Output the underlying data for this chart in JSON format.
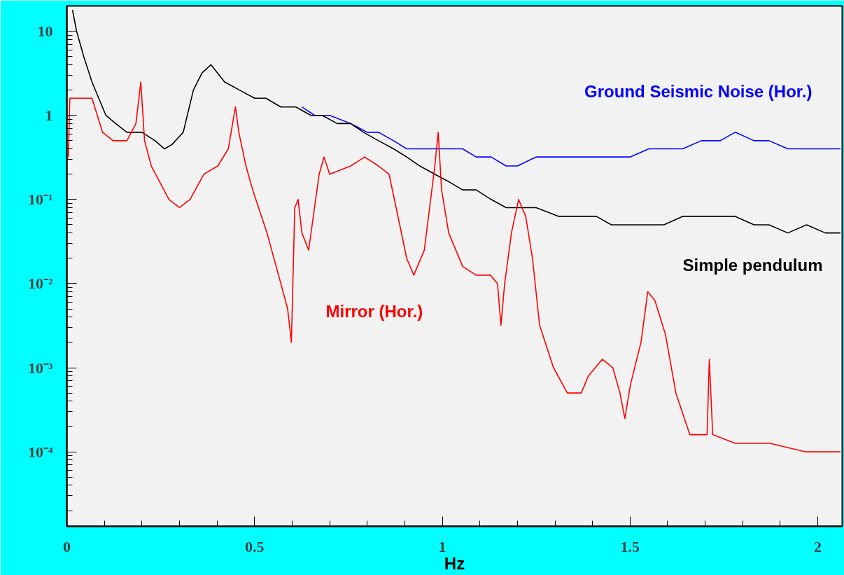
{
  "chart_data": {
    "type": "line",
    "xlabel": "Hz",
    "log": "y",
    "grid": false,
    "xlim": [
      0,
      2.065
    ],
    "ylim": [
      1.3e-05,
      20
    ],
    "xticks": [
      0,
      0.5,
      1,
      1.5,
      2,
      {
        "value": 0.1,
        "label": null
      },
      {
        "value": 0.2,
        "label": null
      },
      {
        "value": 0.3,
        "label": null
      },
      {
        "value": 0.4,
        "label": null
      },
      {
        "value": 0.6,
        "label": null
      },
      {
        "value": 0.7,
        "label": null
      },
      {
        "value": 0.8,
        "label": null
      },
      {
        "value": 0.9,
        "label": null
      },
      {
        "value": 1.1,
        "label": null
      },
      {
        "value": 1.2,
        "label": null
      },
      {
        "value": 1.3,
        "label": null
      },
      {
        "value": 1.4,
        "label": null
      },
      {
        "value": 1.6,
        "label": null
      },
      {
        "value": 1.7,
        "label": null
      },
      {
        "value": 1.8,
        "label": null
      },
      {
        "value": 1.9,
        "label": null
      }
    ],
    "yticks": [
      {
        "value": 0.0001,
        "label": "10⁻⁴"
      },
      {
        "value": 0.001,
        "label": "10⁻³"
      },
      {
        "value": 0.01,
        "label": "10⁻²"
      },
      {
        "value": 0.1,
        "label": "10⁻¹"
      },
      1,
      10,
      {
        "value": 2e-05,
        "label": null
      },
      {
        "value": 3e-05,
        "label": null
      },
      {
        "value": 4e-05,
        "label": null
      },
      {
        "value": 5e-05,
        "label": null
      },
      {
        "value": 6e-05,
        "label": null
      },
      {
        "value": 7e-05,
        "label": null
      },
      {
        "value": 8e-05,
        "label": null
      },
      {
        "value": 9e-05,
        "label": null
      },
      {
        "value": 0.0002,
        "label": null
      },
      {
        "value": 0.0003,
        "label": null
      },
      {
        "value": 0.0004,
        "label": null
      },
      {
        "value": 0.0005,
        "label": null
      },
      {
        "value": 0.0006,
        "label": null
      },
      {
        "value": 0.0007,
        "label": null
      },
      {
        "value": 0.0008,
        "label": null
      },
      {
        "value": 0.0009,
        "label": null
      },
      {
        "value": 0.002,
        "label": null
      },
      {
        "value": 0.003,
        "label": null
      },
      {
        "value": 0.004,
        "label": null
      },
      {
        "value": 0.005,
        "label": null
      },
      {
        "value": 0.006,
        "label": null
      },
      {
        "value": 0.007,
        "label": null
      },
      {
        "value": 0.008,
        "label": null
      },
      {
        "value": 0.009,
        "label": null
      },
      {
        "value": 0.02,
        "label": null
      },
      {
        "value": 0.03,
        "label": null
      },
      {
        "value": 0.04,
        "label": null
      },
      {
        "value": 0.05,
        "label": null
      },
      {
        "value": 0.06,
        "label": null
      },
      {
        "value": 0.07,
        "label": null
      },
      {
        "value": 0.08,
        "label": null
      },
      {
        "value": 0.09,
        "label": null
      },
      {
        "value": 0.2,
        "label": null
      },
      {
        "value": 0.3,
        "label": null
      },
      {
        "value": 0.4,
        "label": null
      },
      {
        "value": 0.5,
        "label": null
      },
      {
        "value": 0.6,
        "label": null
      },
      {
        "value": 0.7,
        "label": null
      },
      {
        "value": 0.8,
        "label": null
      },
      {
        "value": 0.9,
        "label": null
      },
      {
        "value": 2,
        "label": null
      },
      {
        "value": 3,
        "label": null
      },
      {
        "value": 4,
        "label": null
      },
      {
        "value": 5,
        "label": null
      },
      {
        "value": 6,
        "label": null
      },
      {
        "value": 7,
        "label": null
      },
      {
        "value": 8,
        "label": null
      },
      {
        "value": 9,
        "label": null
      }
    ],
    "series": [
      {
        "name": "Ground Seismic Noise (Hor.)",
        "color": "#0000ff",
        "x": [
          0.626,
          0.66,
          0.7,
          0.756,
          0.8,
          0.83,
          0.87,
          0.905,
          0.94,
          0.98,
          1.02,
          1.054,
          1.09,
          1.13,
          1.17,
          1.2,
          1.25,
          1.31,
          1.36,
          1.41,
          1.45,
          1.5,
          1.55,
          1.59,
          1.64,
          1.69,
          1.74,
          1.78,
          1.83,
          1.87,
          1.92,
          1.97,
          2.02,
          2.06
        ],
        "values": [
          1.26,
          1,
          1,
          0.8,
          0.63,
          0.63,
          0.5,
          0.4,
          0.4,
          0.4,
          0.4,
          0.4,
          0.32,
          0.32,
          0.25,
          0.25,
          0.32,
          0.32,
          0.32,
          0.32,
          0.32,
          0.32,
          0.4,
          0.4,
          0.4,
          0.5,
          0.5,
          0.63,
          0.5,
          0.5,
          0.4,
          0.4,
          0.4,
          0.4
        ]
      },
      {
        "name": "Simple pendulum",
        "color": "#000000",
        "x": [
          0.015,
          0.026,
          0.045,
          0.067,
          0.085,
          0.104,
          0.13,
          0.16,
          0.2,
          0.235,
          0.26,
          0.28,
          0.31,
          0.337,
          0.36,
          0.384,
          0.42,
          0.46,
          0.5,
          0.53,
          0.57,
          0.61,
          0.65,
          0.68,
          0.72,
          0.756,
          0.79,
          0.83,
          0.87,
          0.905,
          0.94,
          0.98,
          1.02,
          1.054,
          1.09,
          1.13,
          1.17,
          1.2,
          1.25,
          1.31,
          1.36,
          1.41,
          1.45,
          1.5,
          1.55,
          1.59,
          1.64,
          1.69,
          1.74,
          1.78,
          1.83,
          1.87,
          1.92,
          1.97,
          2.02,
          2.06
        ],
        "values": [
          18,
          10,
          5,
          2.5,
          1.6,
          1,
          0.8,
          0.63,
          0.63,
          0.5,
          0.4,
          0.45,
          0.63,
          2,
          3.2,
          4,
          2.5,
          2,
          1.6,
          1.6,
          1.26,
          1.26,
          1,
          1,
          0.8,
          0.8,
          0.63,
          0.5,
          0.4,
          0.32,
          0.25,
          0.2,
          0.16,
          0.13,
          0.13,
          0.1,
          0.08,
          0.08,
          0.08,
          0.063,
          0.063,
          0.063,
          0.05,
          0.05,
          0.05,
          0.05,
          0.063,
          0.063,
          0.063,
          0.063,
          0.05,
          0.05,
          0.04,
          0.05,
          0.04,
          0.04
        ]
      },
      {
        "name": "Mirror (Hor.)",
        "color": "#ff0000",
        "x": [
          0.004,
          0.008,
          0.03,
          0.067,
          0.095,
          0.123,
          0.16,
          0.184,
          0.197,
          0.207,
          0.225,
          0.272,
          0.3,
          0.328,
          0.365,
          0.402,
          0.43,
          0.449,
          0.458,
          0.477,
          0.495,
          0.533,
          0.57,
          0.588,
          0.598,
          0.607,
          0.616,
          0.626,
          0.644,
          0.672,
          0.685,
          0.7,
          0.756,
          0.793,
          0.83,
          0.858,
          0.877,
          0.905,
          0.924,
          0.952,
          0.98,
          0.989,
          0.998,
          1.017,
          1.054,
          1.09,
          1.128,
          1.147,
          1.156,
          1.166,
          1.184,
          1.203,
          1.222,
          1.24,
          1.259,
          1.296,
          1.333,
          1.37,
          1.389,
          1.426,
          1.454,
          1.473,
          1.486,
          1.501,
          1.529,
          1.547,
          1.566,
          1.594,
          1.622,
          1.659,
          1.687,
          1.705,
          1.711,
          1.72,
          1.78,
          1.873,
          1.966,
          2.06
        ],
        "values": [
          0.32,
          1.6,
          1.6,
          1.6,
          0.63,
          0.5,
          0.5,
          0.8,
          2.5,
          0.5,
          0.25,
          0.1,
          0.08,
          0.1,
          0.2,
          0.25,
          0.4,
          1.26,
          0.63,
          0.25,
          0.13,
          0.04,
          0.01,
          0.005,
          0.002,
          0.08,
          0.1,
          0.04,
          0.025,
          0.2,
          0.32,
          0.2,
          0.25,
          0.32,
          0.25,
          0.2,
          0.08,
          0.02,
          0.0126,
          0.025,
          0.25,
          0.63,
          0.13,
          0.04,
          0.016,
          0.0126,
          0.0126,
          0.01,
          0.0032,
          0.01,
          0.04,
          0.1,
          0.063,
          0.02,
          0.0032,
          0.001,
          0.0005,
          0.0005,
          0.0008,
          0.00126,
          0.001,
          0.0005,
          0.00025,
          0.00063,
          0.002,
          0.008,
          0.0063,
          0.0025,
          0.0005,
          0.00016,
          0.00016,
          0.00016,
          0.00126,
          0.00016,
          0.000126,
          0.000126,
          0.0001,
          0.0001
        ]
      }
    ]
  }
}
